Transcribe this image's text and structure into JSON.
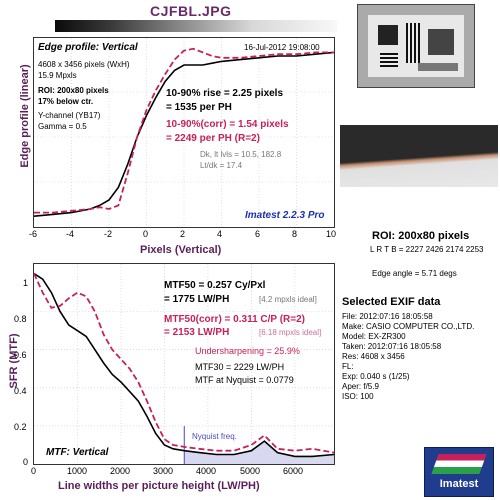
{
  "filename": "CJFBL.JPG",
  "edge": {
    "title": "Edge profile: Vertical",
    "date": "16-Jul-2012 19:08:00",
    "size": "4608 x 3456 pixels (WxH)",
    "mpxls": "15.9 Mpxls",
    "roi": "ROI: 200x80 pixels",
    "below": "17% below ctr.",
    "channel": "Y-channel (YB17)",
    "gamma": "Gamma = 0.5",
    "rise1": "10-90% rise = 2.25 pixels",
    "rise2": "= 1535 per PH",
    "corr1": "10-90%(corr) = 1.54 pixels",
    "corr2": "= 2249 per PH  (R=2)",
    "dk": "Dk, lt lvls = 10.5, 182.8",
    "ltdk": "Lt/dk = 17.4",
    "brand": "Imatest 2.2.3 Pro",
    "ylabel": "Edge profile (linear)",
    "xlabel": "Pixels (Vertical)",
    "xticks": [
      "-6",
      "-4",
      "-2",
      "0",
      "2",
      "4",
      "6",
      "8",
      "10"
    ]
  },
  "mtf": {
    "title": "MTF: Vertical",
    "mtf50": "MTF50 = 0.257 Cy/Pxl",
    "mtf50b": "= 1775 LW/PH",
    "ideal1": "[4.2 mpxls ideal]",
    "corr": "MTF50(corr) = 0.311 C/P  (R=2)",
    "corrb": "= 2153 LW/PH",
    "ideal2": "[6.18 mpxls ideal]",
    "under": "Undersharpening = 25.9%",
    "mtf30": "MTF30 = 2229 LW/PH",
    "nyq": "MTF at Nyquist = 0.0779",
    "nyqlabel": "Nyquist freq.",
    "ylabel": "SFR (MTF)",
    "xlabel": "Line widths per picture height (LW/PH)",
    "xticks": [
      "0",
      "1000",
      "2000",
      "3000",
      "4000",
      "5000",
      "6000"
    ],
    "yticks": [
      "1",
      "0.8",
      "0.6",
      "0.4",
      "0.2",
      "0"
    ]
  },
  "roi": {
    "label": "ROI: 200x80 pixels",
    "lrtb": "L R T B = 2227 2426 2174 2253",
    "angle": "Edge angle = 5.71 degs"
  },
  "exif": {
    "title": "Selected EXIF data",
    "rows": [
      "File:  2012:07:16 18:05:58",
      "Make:  CASIO COMPUTER CO.,LTD.",
      "Model:  EX-ZR300",
      "Taken:  2012:07:16 18:05:58",
      "Res:  4608 x 3456",
      "FL:",
      "Exp:  0.040 s  (1/25)",
      "Aper:  f/5.9",
      "ISO:  100"
    ]
  },
  "logo": "Imatest",
  "chart_data": [
    {
      "type": "line",
      "title": "Edge profile: Vertical",
      "xlabel": "Pixels (Vertical)",
      "ylabel": "Edge profile (linear)",
      "xlim": [
        -6,
        10
      ],
      "ylim": [
        0,
        1.05
      ],
      "series": [
        {
          "color": "#000000",
          "style": "solid",
          "x": [
            -6,
            -5,
            -4,
            -3,
            -2.5,
            -2,
            -1.5,
            -1,
            -0.5,
            0,
            0.5,
            1,
            1.5,
            2,
            2.5,
            3,
            3.5,
            4,
            5,
            6,
            7,
            8,
            9,
            10
          ],
          "y": [
            0.06,
            0.07,
            0.08,
            0.1,
            0.12,
            0.15,
            0.22,
            0.35,
            0.5,
            0.62,
            0.72,
            0.81,
            0.87,
            0.9,
            0.9,
            0.9,
            0.91,
            0.92,
            0.93,
            0.94,
            0.95,
            0.95,
            0.96,
            0.97
          ]
        },
        {
          "color": "#c8205a",
          "style": "dashed",
          "x": [
            -6,
            -5,
            -4,
            -3,
            -2.5,
            -2,
            -1.5,
            -1,
            -0.5,
            0,
            0.5,
            1,
            1.5,
            2,
            2.5,
            3,
            3.5,
            4,
            5,
            6,
            7,
            8,
            9,
            10
          ],
          "y": [
            0.08,
            0.08,
            0.09,
            0.1,
            0.11,
            0.1,
            0.12,
            0.3,
            0.5,
            0.65,
            0.76,
            0.85,
            0.93,
            0.98,
            0.99,
            0.97,
            0.95,
            0.94,
            0.94,
            0.95,
            0.96,
            0.96,
            0.97,
            0.97
          ]
        }
      ]
    },
    {
      "type": "line",
      "title": "MTF: Vertical",
      "xlabel": "Line widths per picture height (LW/PH)",
      "ylabel": "SFR (MTF)",
      "xlim": [
        0,
        6900
      ],
      "ylim": [
        0,
        1.05
      ],
      "nyquist": 3456,
      "series": [
        {
          "color": "#000000",
          "style": "solid",
          "x": [
            0,
            200,
            400,
            600,
            800,
            1000,
            1200,
            1400,
            1600,
            1800,
            2000,
            2200,
            2400,
            2600,
            2800,
            3000,
            3200,
            3456,
            3800,
            4200,
            4600,
            5000,
            5300,
            5600,
            6000,
            6400,
            6900
          ],
          "y": [
            1.0,
            0.97,
            0.9,
            0.8,
            0.73,
            0.7,
            0.67,
            0.6,
            0.53,
            0.47,
            0.43,
            0.38,
            0.33,
            0.25,
            0.16,
            0.1,
            0.08,
            0.07,
            0.06,
            0.05,
            0.05,
            0.07,
            0.12,
            0.06,
            0.04,
            0.04,
            0.05
          ]
        },
        {
          "color": "#c8205a",
          "style": "dashed",
          "x": [
            0,
            200,
            400,
            600,
            800,
            1000,
            1200,
            1400,
            1600,
            1800,
            2000,
            2200,
            2400,
            2600,
            2800,
            3000,
            3200,
            3456,
            3800,
            4200,
            4600,
            5000,
            5300,
            5600,
            6000,
            6400,
            6900
          ],
          "y": [
            1.0,
            0.9,
            0.82,
            0.83,
            0.87,
            0.9,
            0.88,
            0.8,
            0.68,
            0.6,
            0.55,
            0.5,
            0.43,
            0.33,
            0.22,
            0.13,
            0.1,
            0.09,
            0.08,
            0.07,
            0.07,
            0.1,
            0.15,
            0.08,
            0.07,
            0.08,
            0.06
          ]
        }
      ]
    }
  ]
}
